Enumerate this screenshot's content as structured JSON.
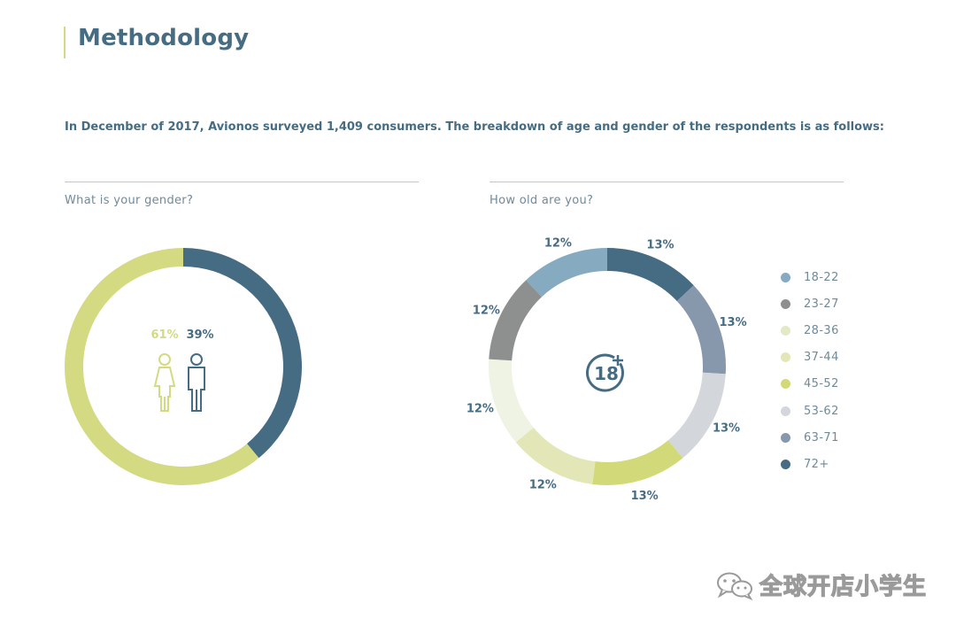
{
  "header": {
    "title": "Methodology",
    "intro": "In December of 2017, Avionos surveyed 1,409 consumers. The breakdown of age and gender of the respondents is as follows:"
  },
  "gender_panel": {
    "question": "What is your gender?",
    "female_label": "61%",
    "male_label": "39%"
  },
  "age_panel": {
    "question": "How old are you?",
    "center_badge": "18"
  },
  "colors": {
    "dark_blue": "#466c84",
    "lime": "#d4da82",
    "light_blue": "#86aabf",
    "gray": "#8e9090",
    "cream": "#eff3e4",
    "pale_lime": "#e3e7b8",
    "mid_lime": "#d2d978",
    "light_gray": "#d3d7dc",
    "slate": "#8898ac",
    "female_icon": "#d4da82",
    "male_icon": "#466c84"
  },
  "chart_data": [
    {
      "type": "pie",
      "categories": [
        "39%",
        "61%"
      ],
      "values": [
        39,
        61
      ],
      "colors": [
        "#466c84",
        "#d4da82"
      ],
      "donut": true
    },
    {
      "type": "pie",
      "categories": [
        "72+",
        "63-71",
        "53-62",
        "45-52",
        "37-44",
        "28-36",
        "23-27",
        "18-22"
      ],
      "values": [
        13,
        13,
        13,
        13,
        12,
        12,
        12,
        12
      ],
      "labels": [
        "13%",
        "13%",
        "13%",
        "13%",
        "12%",
        "12%",
        "12%",
        "12%"
      ],
      "colors": [
        "#466c84",
        "#8898ac",
        "#d3d7dc",
        "#d2d978",
        "#e3e7b8",
        "#eff3e4",
        "#8e9090",
        "#86aabf"
      ],
      "donut": true,
      "legend": {
        "placement": "right",
        "items": [
          {
            "label": "18-22",
            "color": "#86aabf"
          },
          {
            "label": "23-27",
            "color": "#8e9090"
          },
          {
            "label": "28-36",
            "color": "#eff3e4"
          },
          {
            "label": "37-44",
            "color": "#e3e7b8"
          },
          {
            "label": "45-52",
            "color": "#d2d978"
          },
          {
            "label": "53-62",
            "color": "#d3d7dc"
          },
          {
            "label": "63-71",
            "color": "#8898ac"
          },
          {
            "label": "72+",
            "color": "#466c84"
          }
        ]
      }
    }
  ],
  "watermark": {
    "text": "全球开店小学生"
  }
}
